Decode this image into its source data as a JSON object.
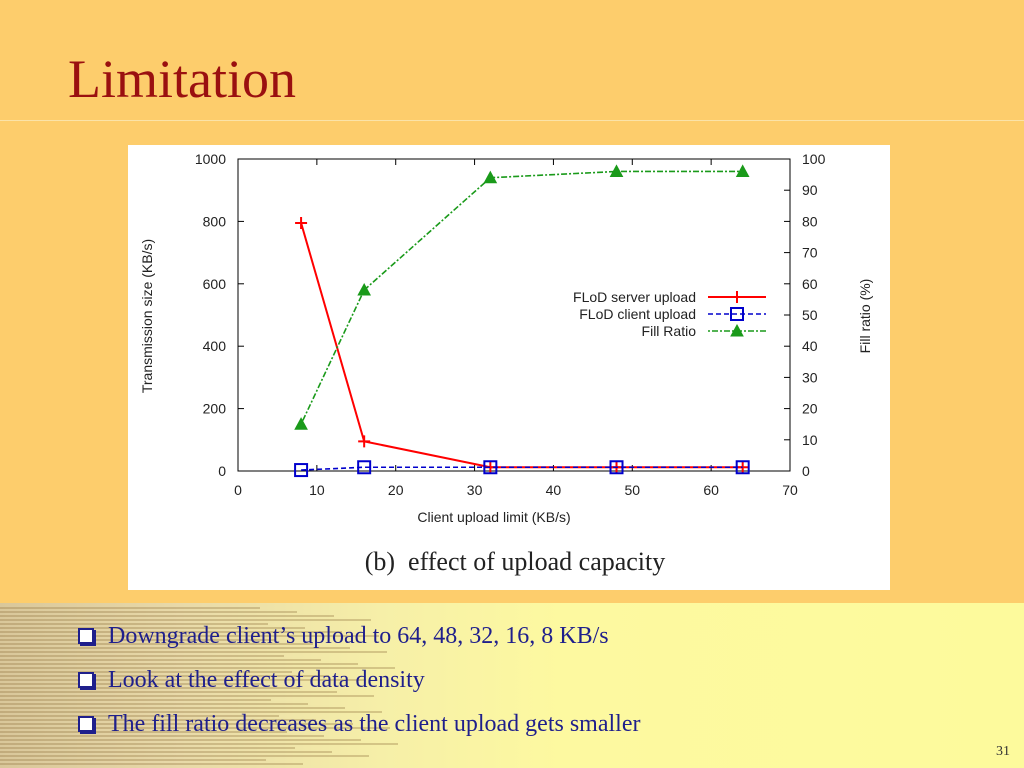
{
  "slide": {
    "title": "Limitation",
    "page_number": "31",
    "bullets": [
      "Downgrade client’s upload to 64, 48, 32, 16, 8 KB/s",
      "Look at the effect of data density",
      "The fill ratio decreases as the client upload gets smaller"
    ],
    "colors": {
      "title": "#9a1010",
      "background": "#fdcd6c",
      "bullet_text": "#1f1f8c"
    }
  },
  "chart_data": {
    "type": "line",
    "caption": "(b)  effect of upload capacity",
    "xlabel": "Client upload limit (KB/s)",
    "ylabel": "Transmission size (KB/s)",
    "y2label": "Fill ratio (%)",
    "xlim": [
      0,
      70
    ],
    "ylim": [
      0,
      1000
    ],
    "y2lim": [
      0,
      100
    ],
    "xticks": [
      0,
      10,
      20,
      30,
      40,
      50,
      60,
      70
    ],
    "yticks": [
      0,
      200,
      400,
      600,
      800,
      1000
    ],
    "y2ticks": [
      0,
      10,
      20,
      30,
      40,
      50,
      60,
      70,
      80,
      90,
      100
    ],
    "legend_position": "center-right",
    "grid": false,
    "series": [
      {
        "name": "FLoD server upload",
        "axis": "left",
        "color": "#ff0000",
        "marker": "plus",
        "dash": "solid",
        "x": [
          8,
          16,
          32,
          48,
          64
        ],
        "values": [
          795,
          95,
          12,
          12,
          12
        ]
      },
      {
        "name": "FLoD client upload",
        "axis": "left",
        "color": "#0000cc",
        "marker": "square",
        "dash": "dashed",
        "x": [
          8,
          16,
          32,
          48,
          64
        ],
        "values": [
          3,
          12,
          12,
          12,
          12
        ]
      },
      {
        "name": "Fill Ratio",
        "axis": "right",
        "color": "#1a9a1a",
        "marker": "triangle",
        "dash": "dotdash",
        "x": [
          8,
          16,
          32,
          48,
          64
        ],
        "values": [
          15,
          58,
          94,
          96,
          96
        ]
      }
    ]
  }
}
